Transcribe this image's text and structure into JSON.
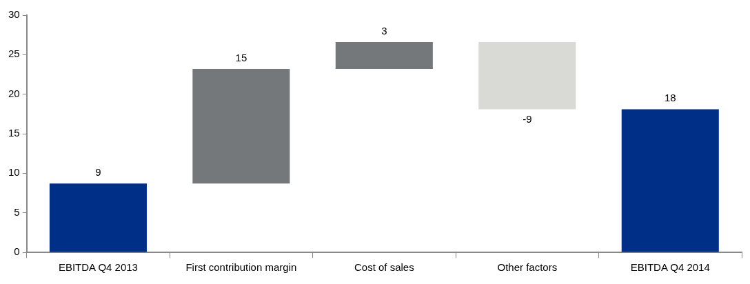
{
  "chart_data": {
    "type": "bar",
    "categories": [
      "EBITDA Q4 2013",
      "First contribution margin",
      "Cost of sales",
      "Other factors",
      "EBITDA Q4 2014"
    ],
    "values": [
      8.7,
      14.5,
      3.4,
      -8.5,
      18.1
    ],
    "base": [
      0,
      8.7,
      23.2,
      26.6,
      0
    ],
    "colors": [
      "#002f87",
      "#75787b",
      "#75787b",
      "#d9dad6",
      "#002f87"
    ],
    "value_labels": [
      "9",
      "15",
      "3",
      "-9",
      "18"
    ],
    "ylim": [
      0,
      30
    ],
    "yticks": [
      0,
      5,
      10,
      15,
      20,
      25,
      30
    ],
    "grid": false,
    "legend": false
  }
}
